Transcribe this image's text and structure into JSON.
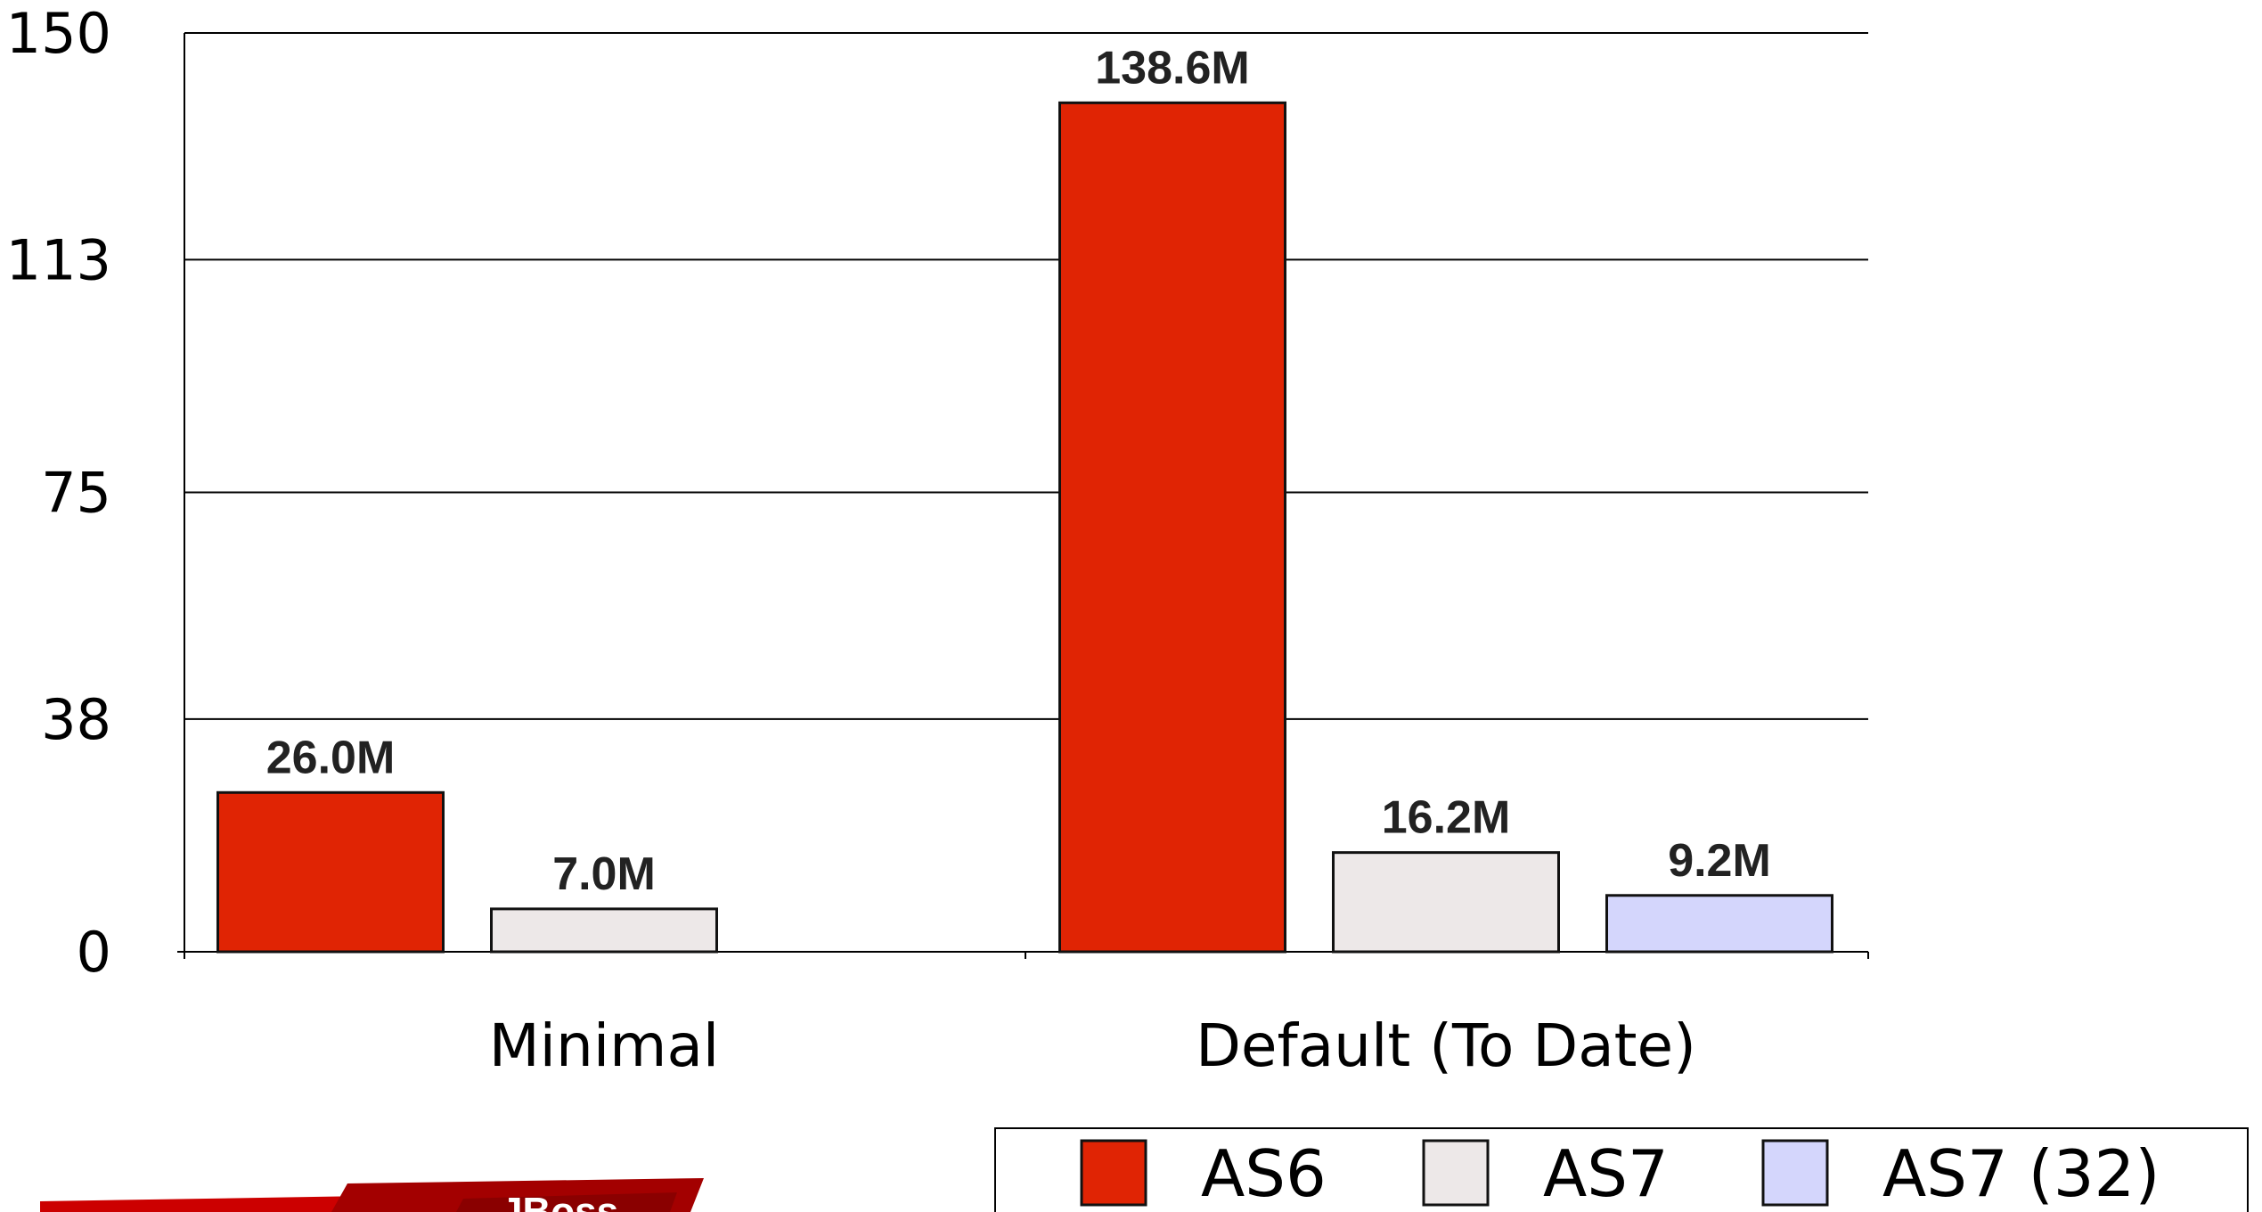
{
  "chart_data": {
    "type": "bar",
    "categories": [
      "Minimal",
      "Default (To Date)"
    ],
    "series": [
      {
        "name": "AS6",
        "values": [
          26.0,
          138.6
        ],
        "labels": [
          "26.0M",
          "138.6M"
        ],
        "color": "#e02404"
      },
      {
        "name": "AS7",
        "values": [
          7.0,
          16.2
        ],
        "labels": [
          "7.0M",
          "16.2M"
        ],
        "color": "#ede8e8"
      },
      {
        "name": "AS7 (32)",
        "values": [
          null,
          9.2
        ],
        "labels": [
          "",
          "9.2M"
        ],
        "color": "#d4d6fc"
      }
    ],
    "yticks": [
      "0",
      "38",
      "75",
      "113",
      "150"
    ],
    "ylim": [
      0,
      150
    ],
    "grid": true,
    "legend_position": "bottom-right",
    "title": "",
    "xlabel": "",
    "ylabel": ""
  },
  "footer_logo": {
    "text": "JBoss",
    "colors": [
      "#cc0000",
      "#a30000",
      "#8a0000"
    ]
  }
}
